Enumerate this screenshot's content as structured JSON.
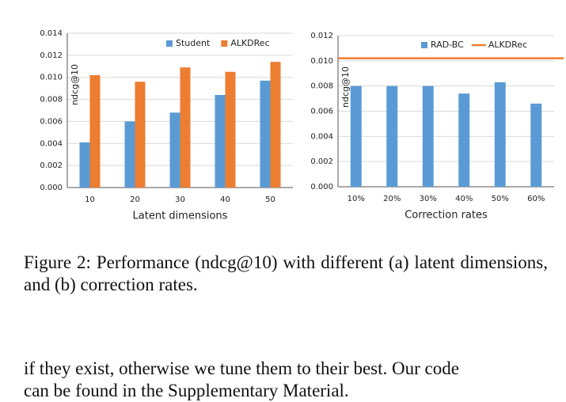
{
  "chart_data": [
    {
      "type": "bar",
      "ylabel": "ndcg@10",
      "xlabel": "Latent dimensions",
      "categories": [
        "10",
        "20",
        "30",
        "40",
        "50"
      ],
      "series": [
        {
          "name": "Student",
          "color": "#5b9bd5",
          "values": [
            0.0041,
            0.006,
            0.0068,
            0.0084,
            0.0097
          ]
        },
        {
          "name": "ALKDRec",
          "color": "#ed7d31",
          "values": [
            0.0102,
            0.0096,
            0.0109,
            0.0105,
            0.0114
          ]
        }
      ],
      "ylim": [
        0,
        0.014
      ],
      "yticks": [
        {
          "value": 0,
          "label": "0.000"
        },
        {
          "value": 0.002,
          "label": "0.002"
        },
        {
          "value": 0.004,
          "label": "0.004"
        },
        {
          "value": 0.006,
          "label": "0.006"
        },
        {
          "value": 0.008,
          "label": "0.008"
        },
        {
          "value": 0.01,
          "label": "0.010"
        },
        {
          "value": 0.012,
          "label": "0.012"
        },
        {
          "value": 0.014,
          "label": "0.014"
        }
      ],
      "grid": true
    },
    {
      "type": "bar",
      "ylabel": "ndcg@10",
      "xlabel": "Correction rates",
      "categories": [
        "10%",
        "20%",
        "30%",
        "40%",
        "50%",
        "60%"
      ],
      "series": [
        {
          "name": "RAD-BC",
          "color": "#5b9bd5",
          "values": [
            0.008,
            0.008,
            0.008,
            0.0074,
            0.0083,
            0.0066
          ]
        }
      ],
      "reference_lines": [
        {
          "name": "ALKDRec",
          "color": "#ed7d31",
          "value": 0.0102
        }
      ],
      "ylim": [
        0,
        0.012
      ],
      "yticks": [
        {
          "value": 0,
          "label": "0.000"
        },
        {
          "value": 0.002,
          "label": "0.002"
        },
        {
          "value": 0.004,
          "label": "0.004"
        },
        {
          "value": 0.006,
          "label": "0.006"
        },
        {
          "value": 0.008,
          "label": "0.008"
        },
        {
          "value": 0.01,
          "label": "0.010"
        },
        {
          "value": 0.012,
          "label": "0.012"
        }
      ],
      "grid": true
    }
  ],
  "caption": "Figure 2: Performance (ndcg@10) with different (a) latent dimensions, and (b) correction rates.",
  "body": [
    "if they exist, otherwise we tune them to their best. Our code",
    "can be found in the Supplementary Material."
  ]
}
